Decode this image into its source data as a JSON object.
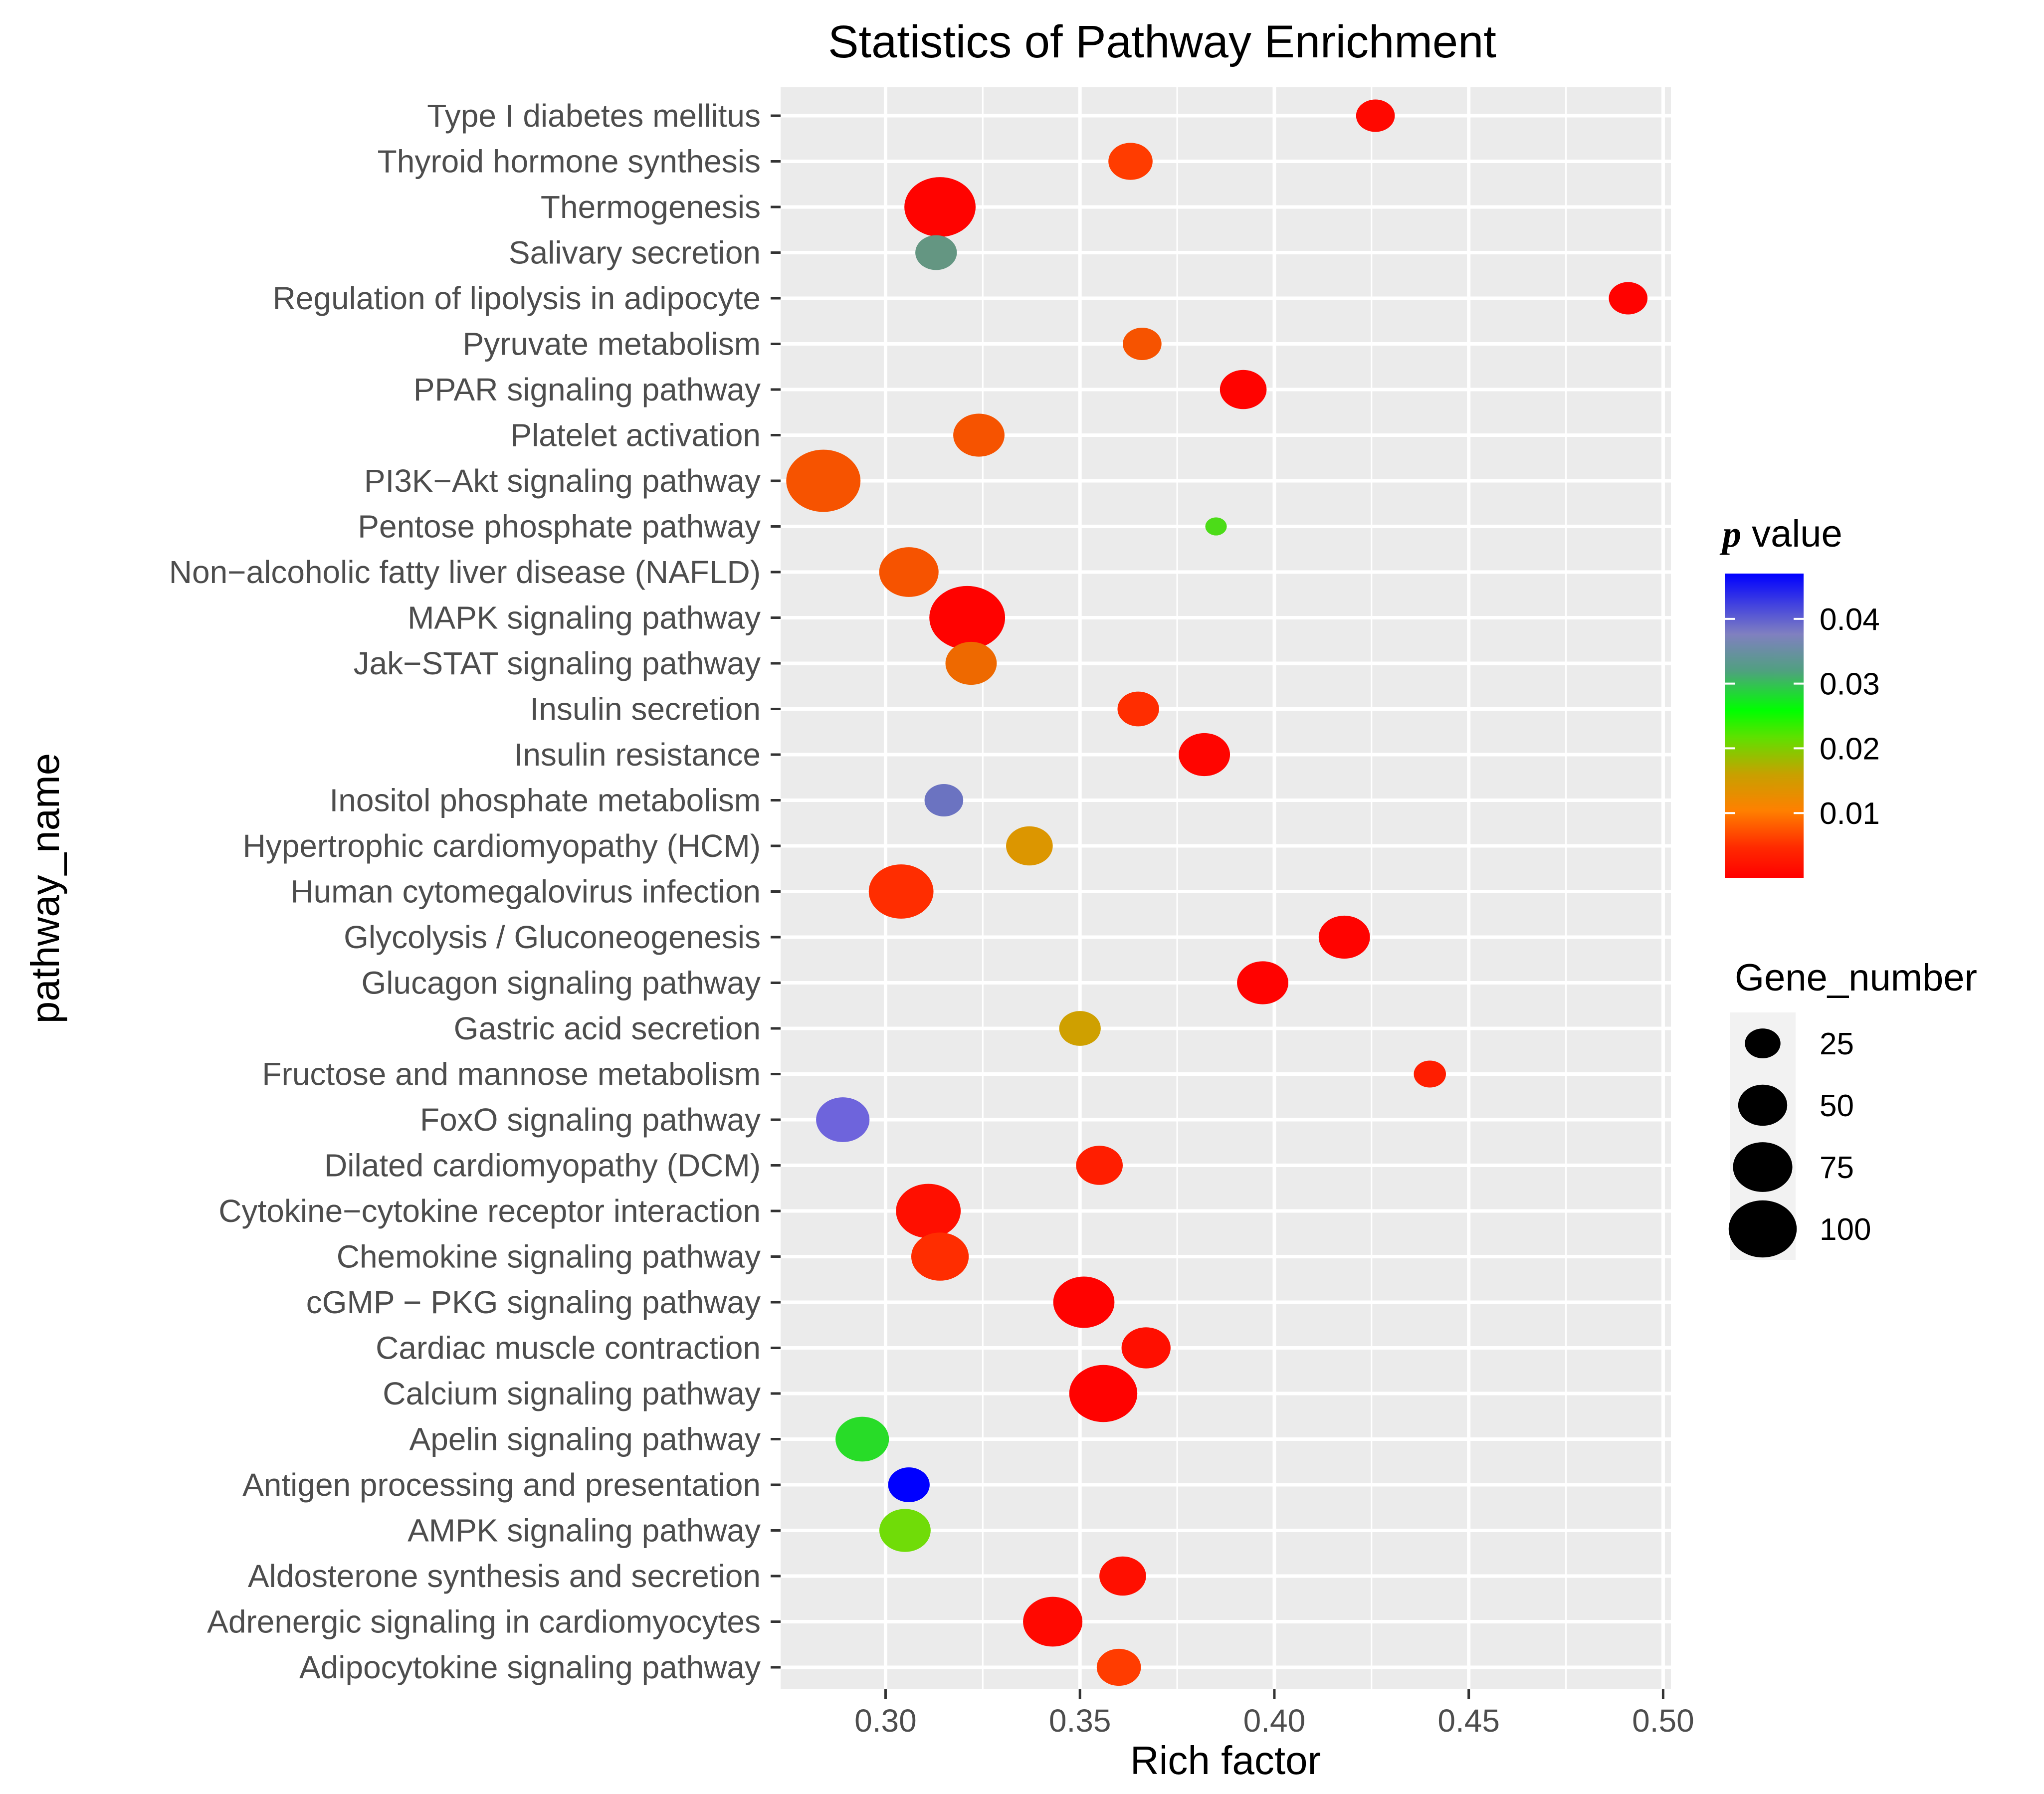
{
  "chart_data": {
    "type": "scatter",
    "title": "Statistics of Pathway Enrichment",
    "xlabel": "Rich factor",
    "ylabel": "pathway_name",
    "xlim": [
      0.273,
      0.502
    ],
    "xticks": [
      "0.30",
      "0.35",
      "0.40",
      "0.45",
      "0.50"
    ],
    "xtick_values": [
      0.3,
      0.35,
      0.4,
      0.45,
      0.5
    ],
    "grid": true,
    "legend_position": "right",
    "color_legend": {
      "title_prefix": "p",
      "title_suffix": " value",
      "range": [
        0.0,
        0.047
      ],
      "stops": [
        "#ff0000",
        "#ff8000",
        "#00ff00",
        "#8080c0",
        "#0000ff"
      ],
      "tick_labels": [
        "0.04",
        "0.03",
        "0.02",
        "0.01"
      ],
      "tick_values": [
        0.04,
        0.03,
        0.02,
        0.01
      ]
    },
    "size_legend": {
      "title": "Gene_number",
      "labels": [
        "25",
        "50",
        "75",
        "100"
      ],
      "values": [
        25,
        50,
        75,
        100
      ]
    },
    "pathways": [
      {
        "name": "Type I diabetes mellitus",
        "rich_factor": 0.426,
        "gene_number": 30,
        "p_value": 0.0005
      },
      {
        "name": "Thyroid hormone synthesis",
        "rich_factor": 0.363,
        "gene_number": 40,
        "p_value": 0.004
      },
      {
        "name": "Thermogenesis",
        "rich_factor": 0.314,
        "gene_number": 110,
        "p_value": 0.0002
      },
      {
        "name": "Salivary secretion",
        "rich_factor": 0.313,
        "gene_number": 35,
        "p_value": 0.03
      },
      {
        "name": "Regulation of lipolysis in adipocyte",
        "rich_factor": 0.491,
        "gene_number": 30,
        "p_value": 0.0001
      },
      {
        "name": "Pyruvate metabolism",
        "rich_factor": 0.366,
        "gene_number": 30,
        "p_value": 0.005
      },
      {
        "name": "PPAR signaling pathway",
        "rich_factor": 0.392,
        "gene_number": 45,
        "p_value": 0.0002
      },
      {
        "name": "Platelet activation",
        "rich_factor": 0.324,
        "gene_number": 55,
        "p_value": 0.005
      },
      {
        "name": "PI3K−Akt signaling pathway",
        "rich_factor": 0.284,
        "gene_number": 120,
        "p_value": 0.005
      },
      {
        "name": "Pentose phosphate pathway",
        "rich_factor": 0.385,
        "gene_number": 8,
        "p_value": 0.018
      },
      {
        "name": "Non−alcoholic fatty liver disease (NAFLD)",
        "rich_factor": 0.306,
        "gene_number": 75,
        "p_value": 0.005
      },
      {
        "name": "MAPK signaling pathway",
        "rich_factor": 0.321,
        "gene_number": 125,
        "p_value": 0.0001
      },
      {
        "name": "Jak−STAT signaling pathway",
        "rich_factor": 0.322,
        "gene_number": 55,
        "p_value": 0.006
      },
      {
        "name": "Insulin secretion",
        "rich_factor": 0.365,
        "gene_number": 35,
        "p_value": 0.003
      },
      {
        "name": "Insulin resistance",
        "rich_factor": 0.382,
        "gene_number": 55,
        "p_value": 0.0003
      },
      {
        "name": "Inositol phosphate metabolism",
        "rich_factor": 0.315,
        "gene_number": 30,
        "p_value": 0.037
      },
      {
        "name": "Hypertrophic cardiomyopathy (HCM)",
        "rich_factor": 0.337,
        "gene_number": 45,
        "p_value": 0.008
      },
      {
        "name": "Human cytomegalovirus infection",
        "rich_factor": 0.304,
        "gene_number": 90,
        "p_value": 0.003
      },
      {
        "name": "Glycolysis / Gluconeogenesis",
        "rich_factor": 0.418,
        "gene_number": 55,
        "p_value": 0.0002
      },
      {
        "name": "Glucagon signaling pathway",
        "rich_factor": 0.397,
        "gene_number": 55,
        "p_value": 0.0001
      },
      {
        "name": "Gastric acid secretion",
        "rich_factor": 0.35,
        "gene_number": 35,
        "p_value": 0.009
      },
      {
        "name": "Fructose and mannose metabolism",
        "rich_factor": 0.44,
        "gene_number": 20,
        "p_value": 0.002
      },
      {
        "name": "FoxO signaling pathway",
        "rich_factor": 0.289,
        "gene_number": 60,
        "p_value": 0.04
      },
      {
        "name": "Dilated cardiomyopathy (DCM)",
        "rich_factor": 0.355,
        "gene_number": 45,
        "p_value": 0.002
      },
      {
        "name": "Cytokine−cytokine receptor interaction",
        "rich_factor": 0.311,
        "gene_number": 90,
        "p_value": 0.001
      },
      {
        "name": "Chemokine signaling pathway",
        "rich_factor": 0.314,
        "gene_number": 70,
        "p_value": 0.003
      },
      {
        "name": "cGMP − PKG signaling pathway",
        "rich_factor": 0.351,
        "gene_number": 80,
        "p_value": 0.0001
      },
      {
        "name": "Cardiac muscle contraction",
        "rich_factor": 0.367,
        "gene_number": 50,
        "p_value": 0.001
      },
      {
        "name": "Calcium signaling pathway",
        "rich_factor": 0.356,
        "gene_number": 100,
        "p_value": 0.0001
      },
      {
        "name": "Apelin signaling pathway",
        "rich_factor": 0.294,
        "gene_number": 60,
        "p_value": 0.02
      },
      {
        "name": "Antigen processing and presentation",
        "rich_factor": 0.306,
        "gene_number": 35,
        "p_value": 0.047
      },
      {
        "name": "AMPK signaling pathway",
        "rich_factor": 0.305,
        "gene_number": 55,
        "p_value": 0.016
      },
      {
        "name": "Aldosterone synthesis and secretion",
        "rich_factor": 0.361,
        "gene_number": 45,
        "p_value": 0.001
      },
      {
        "name": "Adrenergic signaling in cardiomyocytes",
        "rich_factor": 0.343,
        "gene_number": 75,
        "p_value": 0.0005
      },
      {
        "name": "Adipocytokine signaling pathway",
        "rich_factor": 0.36,
        "gene_number": 40,
        "p_value": 0.004
      }
    ]
  }
}
